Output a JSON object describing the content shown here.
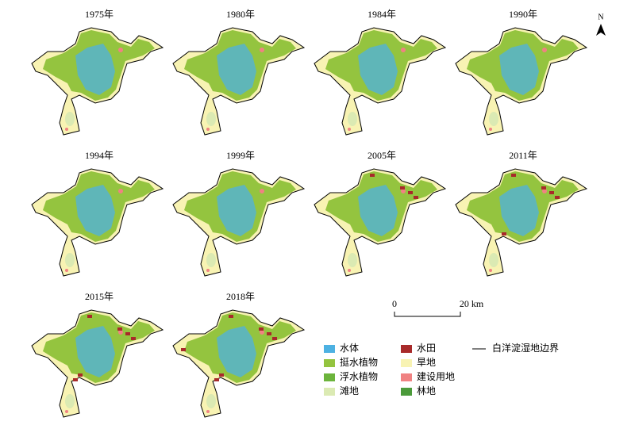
{
  "panels": [
    {
      "title": "1975年"
    },
    {
      "title": "1980年"
    },
    {
      "title": "1984年"
    },
    {
      "title": "1990年"
    },
    {
      "title": "1994年"
    },
    {
      "title": "1999年"
    },
    {
      "title": "2005年"
    },
    {
      "title": "2011年"
    },
    {
      "title": "2015年"
    },
    {
      "title": "2018年"
    }
  ],
  "north": "N",
  "scale": {
    "start": "0",
    "end": "20 km"
  },
  "legend": {
    "items": [
      {
        "label": "水体",
        "color": "#4db1e2"
      },
      {
        "label": "挺水植物",
        "color": "#94c43f"
      },
      {
        "label": "浮水植物",
        "color": "#6cb43c"
      },
      {
        "label": "滩地",
        "color": "#dbeab3"
      },
      {
        "label": "水田",
        "color": "#a82a2a"
      },
      {
        "label": "旱地",
        "color": "#f8f3b3"
      },
      {
        "label": "建设用地",
        "color": "#f08282"
      },
      {
        "label": "林地",
        "color": "#4b9a3a"
      }
    ],
    "boundary": "白洋淀湿地边界"
  }
}
